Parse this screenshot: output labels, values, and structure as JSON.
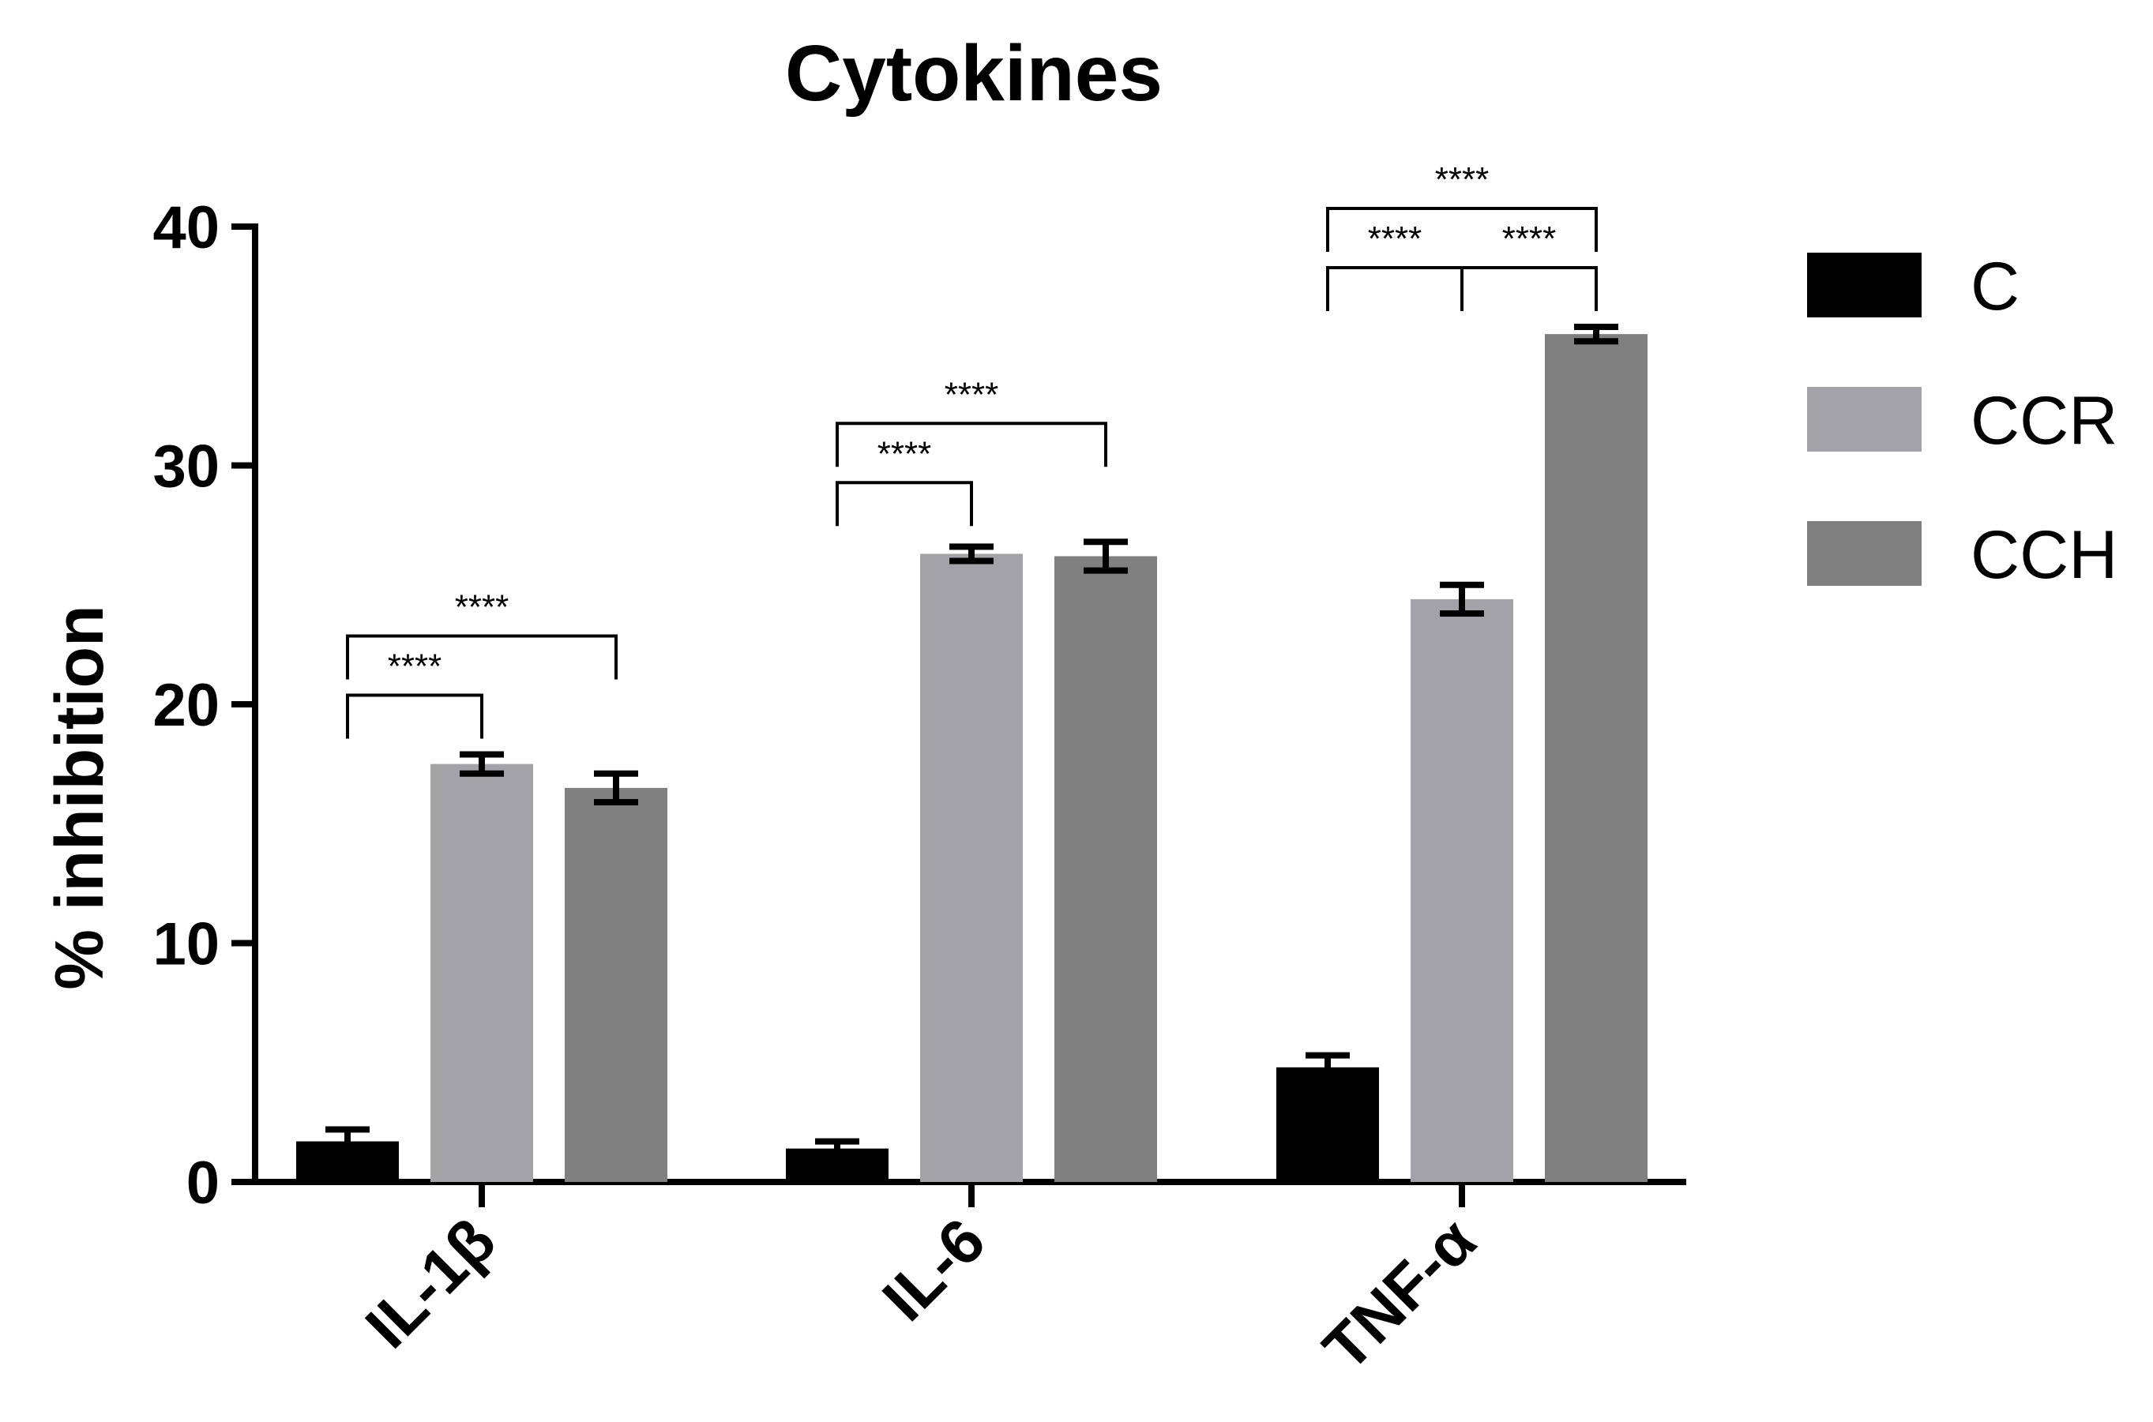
{
  "chart_data": {
    "type": "bar",
    "title": "Cytokines",
    "xlabel": "",
    "ylabel": "% inhibition",
    "ylim": [
      0,
      40
    ],
    "yticks": [
      0,
      10,
      20,
      30,
      40
    ],
    "grid": false,
    "legend_position": "right",
    "categories": [
      "IL-1β",
      "IL-6",
      "TNF-α"
    ],
    "series": [
      {
        "name": "C",
        "color": "#000000",
        "values": [
          1.7,
          1.4,
          4.8
        ],
        "errors": [
          0.5,
          0.3,
          0.5
        ]
      },
      {
        "name": "CCR",
        "color": "#a3a2a6",
        "values": [
          17.5,
          26.3,
          24.4
        ],
        "errors": [
          0.4,
          0.3,
          0.6
        ]
      },
      {
        "name": "CCH",
        "color": "#808080",
        "values": [
          16.5,
          26.2,
          35.5
        ],
        "errors": [
          0.6,
          0.6,
          0.3
        ]
      }
    ],
    "annotations": [
      {
        "category": 0,
        "from": "C",
        "to": "CCR",
        "label": "****"
      },
      {
        "category": 0,
        "from": "C",
        "to": "CCH",
        "label": "****"
      },
      {
        "category": 1,
        "from": "C",
        "to": "CCR",
        "label": "****"
      },
      {
        "category": 1,
        "from": "C",
        "to": "CCH",
        "label": "****"
      },
      {
        "category": 2,
        "from": "C",
        "to": "CCR",
        "label": "****"
      },
      {
        "category": 2,
        "from": "CCR",
        "to": "CCH",
        "label": "****"
      },
      {
        "category": 2,
        "from": "C",
        "to": "CCH",
        "label": "****"
      }
    ]
  }
}
